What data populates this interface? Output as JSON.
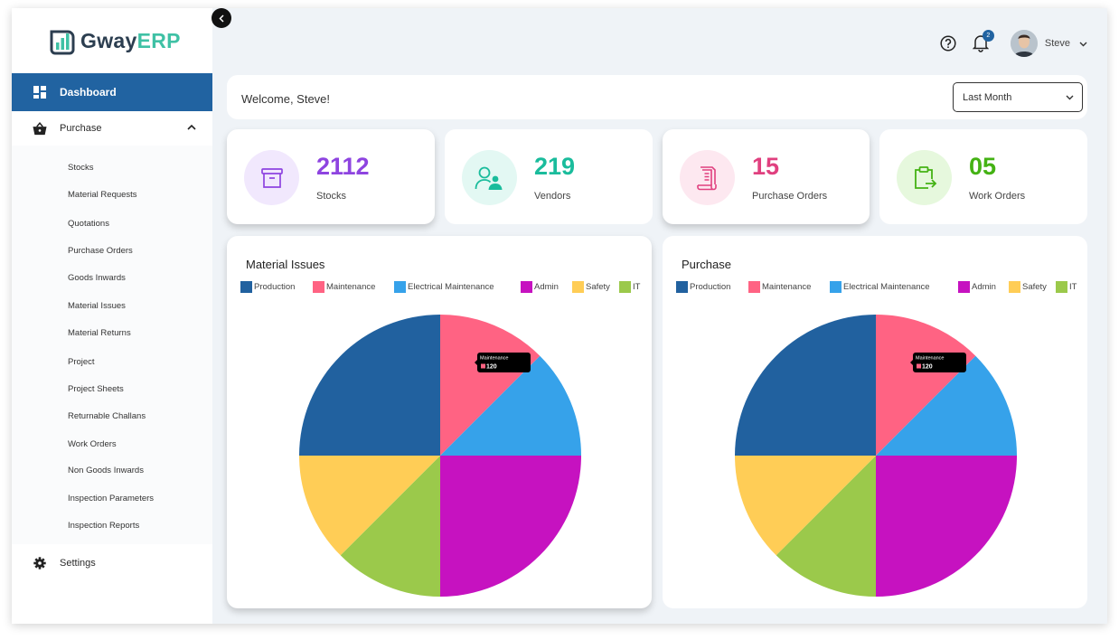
{
  "app": {
    "logo_part1": "Gway",
    "logo_part2": "ERP",
    "brand_color": "#2163a1"
  },
  "sidebar": {
    "dashboard": "Dashboard",
    "purchase": "Purchase",
    "settings": "Settings",
    "submenu": [
      "Stocks",
      "Material Requests",
      "Quotations",
      "Purchase Orders",
      "Goods Inwards",
      "Material Issues",
      "Material Returns",
      "Project",
      "Project Sheets",
      "Returnable Challans",
      "Work Orders",
      "Non Goods Inwards",
      "Inspection Parameters",
      "Inspection Reports"
    ]
  },
  "header": {
    "notification_count": "2",
    "user_name": "Steve"
  },
  "welcome": {
    "text": "Welcome, Steve!",
    "period": "Last Month"
  },
  "stats": [
    {
      "value": "2112",
      "label": "Stocks",
      "color": "#8e44e0",
      "bg": "#f1e8fd",
      "icon": "archive-box-icon"
    },
    {
      "value": "219",
      "label": "Vendors",
      "color": "#1abc9c",
      "bg": "#e3f8f3",
      "icon": "users-icon"
    },
    {
      "value": "15",
      "label": "Purchase Orders",
      "color": "#e0407f",
      "bg": "#fde8f0",
      "icon": "receipt-icon"
    },
    {
      "value": "05",
      "label": "Work Orders",
      "color": "#44b214",
      "bg": "#e6f8dd",
      "icon": "clipboard-arrow-icon"
    }
  ],
  "legend_colors": {
    "Production": "#21619f",
    "Maintenance": "#ff6383",
    "Electrical Maintenance": "#36a2ea",
    "Admin": "#c612c0",
    "Safety": "#ffcd56",
    "IT": "#9bc94b"
  },
  "chart_data": [
    {
      "type": "pie",
      "title": "Material Issues",
      "categories": [
        "Production",
        "Maintenance",
        "Electrical Maintenance",
        "Admin",
        "Safety",
        "IT"
      ],
      "values": [
        240,
        120,
        120,
        240,
        120,
        120
      ],
      "tooltip": {
        "label": "Maintenance",
        "value": "120"
      }
    },
    {
      "type": "pie",
      "title": "Purchase",
      "categories": [
        "Production",
        "Maintenance",
        "Electrical Maintenance",
        "Admin",
        "Safety",
        "IT"
      ],
      "values": [
        240,
        120,
        120,
        240,
        120,
        120
      ],
      "tooltip": {
        "label": "Maintenance",
        "value": "120"
      }
    }
  ]
}
